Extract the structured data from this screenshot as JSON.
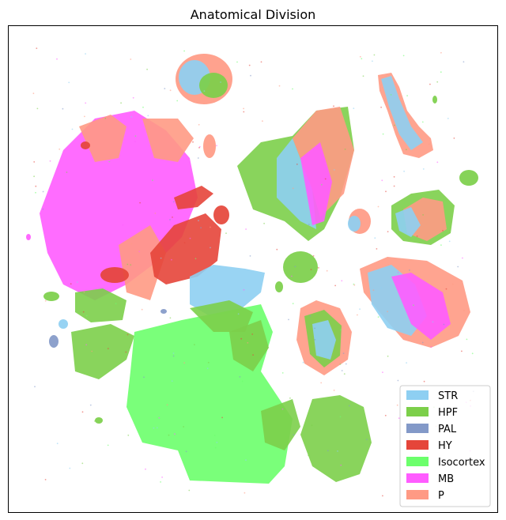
{
  "chart_data": {
    "type": "scatter",
    "title": "Anatomical Division",
    "xlabel": "",
    "ylabel": "",
    "grid": false,
    "axis_ticks": false,
    "legend_placement": "lower-right",
    "categories": [
      "STR",
      "HPF",
      "PAL",
      "HY",
      "Isocortex",
      "MB",
      "P"
    ],
    "colors": {
      "STR": "#8ecff2",
      "HPF": "#7ccf4a",
      "PAL": "#8399c8",
      "HY": "#e5453a",
      "Isocortex": "#6cff6c",
      "MB": "#ff5cff",
      "P": "#ff9a84"
    },
    "series": [
      {
        "name": "STR"
      },
      {
        "name": "HPF"
      },
      {
        "name": "PAL"
      },
      {
        "name": "HY"
      },
      {
        "name": "Isocortex"
      },
      {
        "name": "MB"
      },
      {
        "name": "P"
      }
    ]
  }
}
